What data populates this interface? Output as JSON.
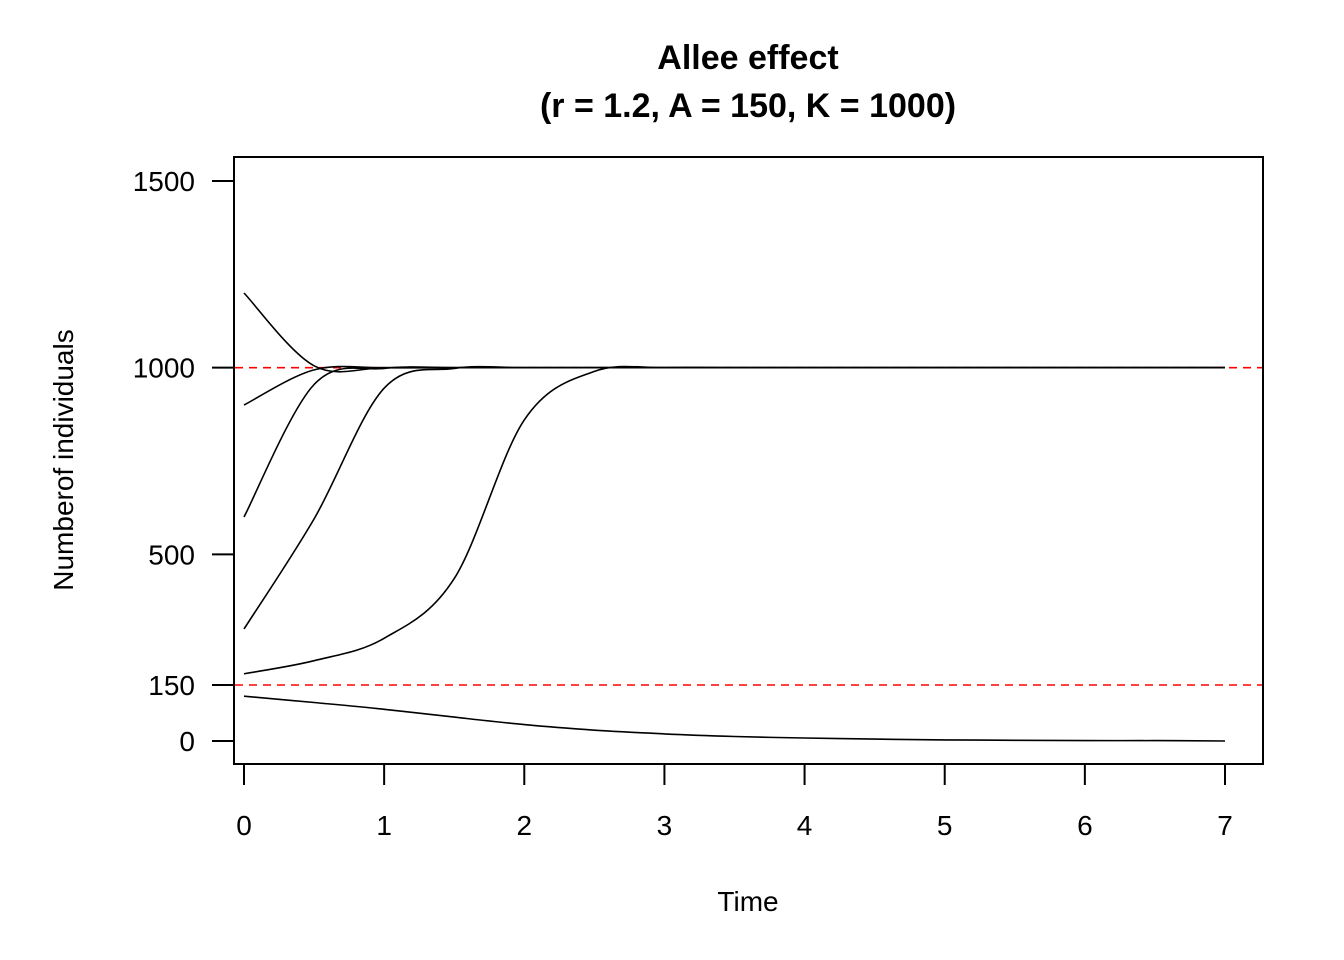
{
  "chart_data": {
    "type": "line",
    "title": "Allee effect",
    "subtitle": "(r = 1.2, A = 150, K = 1000)",
    "xlabel": "Time",
    "ylabel": "Numberof individuals",
    "xlim": [
      0,
      7
    ],
    "ylim": [
      0,
      1500
    ],
    "x_ticks": [
      "0",
      "1",
      "2",
      "3",
      "4",
      "5",
      "6",
      "7"
    ],
    "y_ticks": [
      "0",
      "150",
      "500",
      "1000",
      "1500"
    ],
    "grid": false,
    "legend": "none",
    "line_color": "#000000",
    "reference_line_color": "#ff0000",
    "reference_lines": [
      150,
      1000
    ],
    "x": [
      0,
      0.5,
      1,
      1.5,
      2,
      2.5,
      3,
      3.5,
      4,
      4.5,
      5,
      5.5,
      6,
      6.5,
      7
    ],
    "series": [
      {
        "values": [
          1200,
          1005,
          1000,
          1000,
          1000,
          1000,
          1000,
          1000,
          1000,
          1000,
          1000,
          1000,
          1000,
          1000,
          1000
        ]
      },
      {
        "values": [
          900,
          994,
          1000,
          1000,
          1000,
          1000,
          1000,
          1000,
          1000,
          1000,
          1000,
          1000,
          1000,
          1000,
          1000
        ]
      },
      {
        "values": [
          600,
          955,
          998,
          1000,
          1000,
          1000,
          1000,
          1000,
          1000,
          1000,
          1000,
          1000,
          1000,
          1000,
          1000
        ]
      },
      {
        "values": [
          300,
          595,
          945,
          998,
          1000,
          1000,
          1000,
          1000,
          1000,
          1000,
          1000,
          1000,
          1000,
          1000,
          1000
        ]
      },
      {
        "values": [
          180,
          215,
          275,
          435,
          860,
          990,
          1000,
          1000,
          1000,
          1000,
          1000,
          1000,
          1000,
          1000,
          1000
        ]
      },
      {
        "values": [
          120,
          103,
          85,
          64,
          44,
          29,
          19,
          12,
          8,
          5,
          3,
          2,
          1,
          1,
          0
        ]
      }
    ]
  }
}
